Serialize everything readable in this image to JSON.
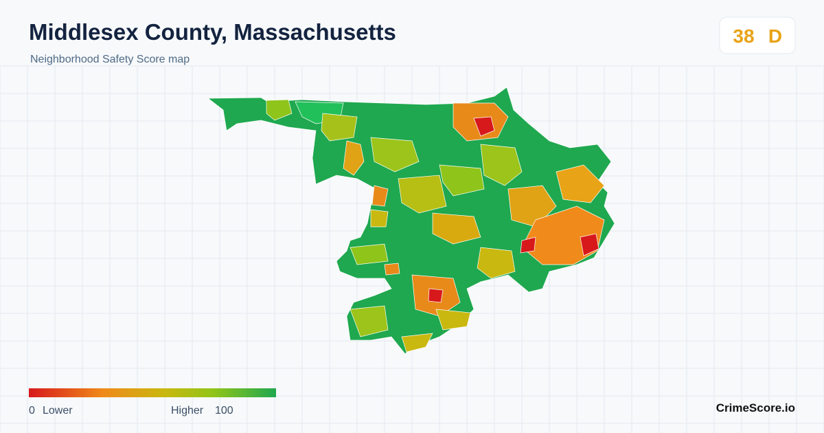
{
  "header": {
    "title": "Middlesex County, Massachusetts",
    "subtitle": "Neighborhood Safety Score map"
  },
  "score": {
    "value": "38",
    "grade": "D"
  },
  "legend": {
    "min": "0",
    "min_label": "Lower",
    "max_label": "Higher",
    "max": "100"
  },
  "brand": "CrimeScore.io"
}
